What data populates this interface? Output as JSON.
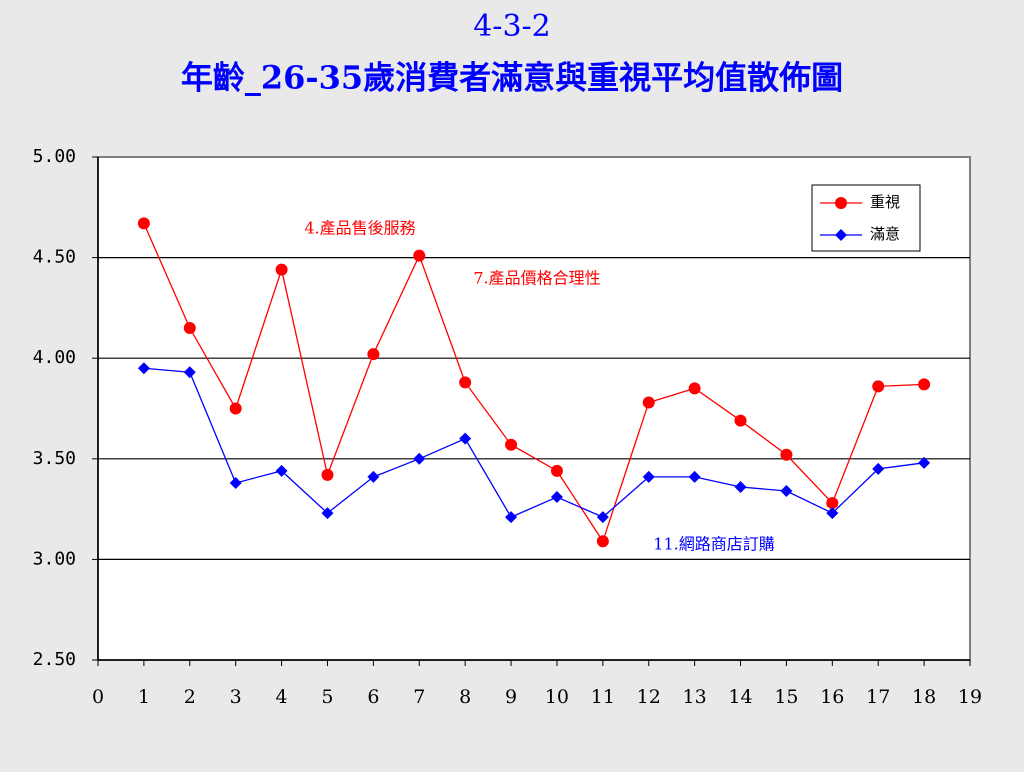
{
  "chart_data": {
    "type": "line",
    "title": "4-3-2",
    "subtitle": "年齡_26-35歲消費者滿意與重視平均值散佈圖",
    "x": [
      1,
      2,
      3,
      4,
      5,
      6,
      7,
      8,
      9,
      10,
      11,
      12,
      13,
      14,
      15,
      16,
      17,
      18
    ],
    "series": [
      {
        "name": "重視",
        "color": "#ff0000",
        "marker": "circle",
        "values": [
          4.67,
          4.15,
          3.75,
          4.44,
          3.42,
          4.02,
          4.51,
          3.88,
          3.57,
          3.44,
          3.09,
          3.78,
          3.85,
          3.69,
          3.52,
          3.28,
          3.86,
          3.87
        ]
      },
      {
        "name": "滿意",
        "color": "#0000ff",
        "marker": "diamond",
        "values": [
          3.95,
          3.93,
          3.38,
          3.44,
          3.23,
          3.41,
          3.5,
          3.6,
          3.21,
          3.31,
          3.21,
          3.41,
          3.41,
          3.36,
          3.34,
          3.23,
          3.45,
          3.48
        ]
      }
    ],
    "xlim": [
      0,
      19
    ],
    "xticks": [
      0,
      1,
      2,
      3,
      4,
      5,
      6,
      7,
      8,
      9,
      10,
      11,
      12,
      13,
      14,
      15,
      16,
      17,
      18,
      19
    ],
    "ylim": [
      2.5,
      5
    ],
    "yticks": [
      {
        "value": 2.5,
        "label": "2.50"
      },
      {
        "value": 3,
        "label": "3.00"
      },
      {
        "value": 3.5,
        "label": "3.50"
      },
      {
        "value": 4,
        "label": "4.00"
      },
      {
        "value": 4.5,
        "label": "4.50"
      },
      {
        "value": 5,
        "label": "5.00"
      }
    ],
    "grid": true,
    "legend": "top-right",
    "annotations": [
      {
        "text": "4.產品售後服務",
        "color": "#ff0000"
      },
      {
        "text": "7.產品價格合理性",
        "color": "#ff0000"
      },
      {
        "text": "11.網路商店訂購",
        "color": "#0000ff"
      }
    ]
  }
}
